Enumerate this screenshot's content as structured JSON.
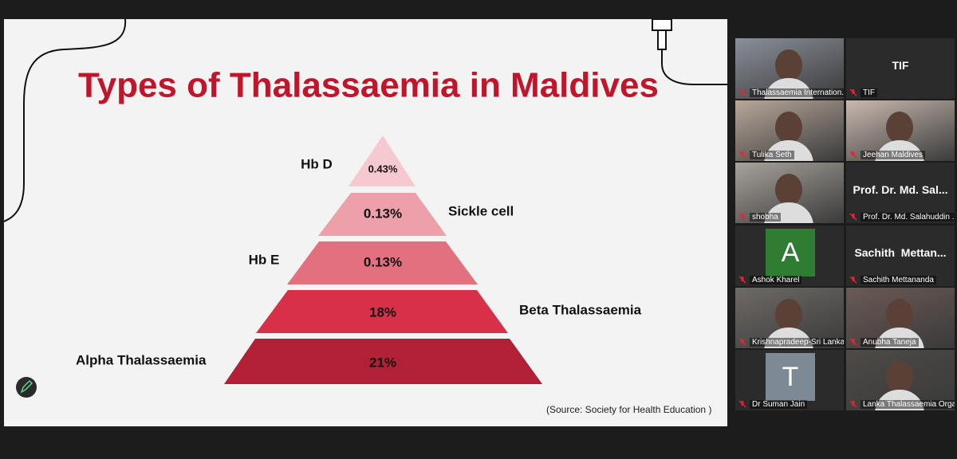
{
  "slide": {
    "title": "Types of Thalassaemia in Maldives",
    "levels": [
      {
        "label": "Hb D",
        "value": "0.43%"
      },
      {
        "label": "Sickle cell",
        "value": "0.13%"
      },
      {
        "label": "Hb E",
        "value": "0.13%"
      },
      {
        "label": "Beta Thalassaemia",
        "value": "18%"
      },
      {
        "label": "Alpha Thalassaemia",
        "value": "21%"
      }
    ],
    "source": "(Source: Society for Health Education )"
  },
  "participants": [
    {
      "name": "Thalassaemia Internation..."
    },
    {
      "name": "TIF",
      "display": "TIF"
    },
    {
      "name": "Tulika Seth"
    },
    {
      "name": "Jeehan Maldives"
    },
    {
      "name": "shobha"
    },
    {
      "name": "Prof. Dr. Md. Salahuddin ...",
      "display": "Prof. Dr. Md. Sal..."
    },
    {
      "name": "Ashok Kharel",
      "avatar": "A"
    },
    {
      "name": "Sachith Mettananda",
      "display": "Sachith  Mettan..."
    },
    {
      "name": "Krishnapradeep-Sri Lanka"
    },
    {
      "name": "Anubha Taneja"
    },
    {
      "name": "Dr Suman Jain",
      "avatar": "T"
    },
    {
      "name": "Lanka Thalassaemia Orga..."
    }
  ]
}
